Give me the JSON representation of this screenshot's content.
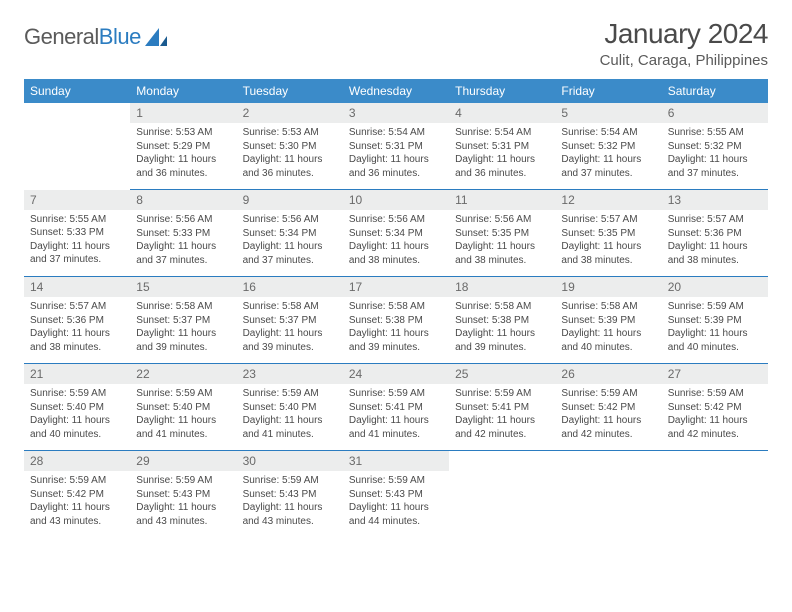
{
  "logo": {
    "text1": "General",
    "text2": "Blue"
  },
  "title": "January 2024",
  "location": "Culit, Caraga, Philippines",
  "colors": {
    "header_bg": "#3b8bc9",
    "header_border": "#2b7cc0",
    "daynum_bg": "#eceded",
    "text": "#4a4a4a"
  },
  "weekdays": [
    "Sunday",
    "Monday",
    "Tuesday",
    "Wednesday",
    "Thursday",
    "Friday",
    "Saturday"
  ],
  "weeks": [
    [
      null,
      {
        "n": "1",
        "sr": "Sunrise: 5:53 AM",
        "ss": "Sunset: 5:29 PM",
        "dl": "Daylight: 11 hours and 36 minutes."
      },
      {
        "n": "2",
        "sr": "Sunrise: 5:53 AM",
        "ss": "Sunset: 5:30 PM",
        "dl": "Daylight: 11 hours and 36 minutes."
      },
      {
        "n": "3",
        "sr": "Sunrise: 5:54 AM",
        "ss": "Sunset: 5:31 PM",
        "dl": "Daylight: 11 hours and 36 minutes."
      },
      {
        "n": "4",
        "sr": "Sunrise: 5:54 AM",
        "ss": "Sunset: 5:31 PM",
        "dl": "Daylight: 11 hours and 36 minutes."
      },
      {
        "n": "5",
        "sr": "Sunrise: 5:54 AM",
        "ss": "Sunset: 5:32 PM",
        "dl": "Daylight: 11 hours and 37 minutes."
      },
      {
        "n": "6",
        "sr": "Sunrise: 5:55 AM",
        "ss": "Sunset: 5:32 PM",
        "dl": "Daylight: 11 hours and 37 minutes."
      }
    ],
    [
      {
        "n": "7",
        "sr": "Sunrise: 5:55 AM",
        "ss": "Sunset: 5:33 PM",
        "dl": "Daylight: 11 hours and 37 minutes."
      },
      {
        "n": "8",
        "sr": "Sunrise: 5:56 AM",
        "ss": "Sunset: 5:33 PM",
        "dl": "Daylight: 11 hours and 37 minutes."
      },
      {
        "n": "9",
        "sr": "Sunrise: 5:56 AM",
        "ss": "Sunset: 5:34 PM",
        "dl": "Daylight: 11 hours and 37 minutes."
      },
      {
        "n": "10",
        "sr": "Sunrise: 5:56 AM",
        "ss": "Sunset: 5:34 PM",
        "dl": "Daylight: 11 hours and 38 minutes."
      },
      {
        "n": "11",
        "sr": "Sunrise: 5:56 AM",
        "ss": "Sunset: 5:35 PM",
        "dl": "Daylight: 11 hours and 38 minutes."
      },
      {
        "n": "12",
        "sr": "Sunrise: 5:57 AM",
        "ss": "Sunset: 5:35 PM",
        "dl": "Daylight: 11 hours and 38 minutes."
      },
      {
        "n": "13",
        "sr": "Sunrise: 5:57 AM",
        "ss": "Sunset: 5:36 PM",
        "dl": "Daylight: 11 hours and 38 minutes."
      }
    ],
    [
      {
        "n": "14",
        "sr": "Sunrise: 5:57 AM",
        "ss": "Sunset: 5:36 PM",
        "dl": "Daylight: 11 hours and 38 minutes."
      },
      {
        "n": "15",
        "sr": "Sunrise: 5:58 AM",
        "ss": "Sunset: 5:37 PM",
        "dl": "Daylight: 11 hours and 39 minutes."
      },
      {
        "n": "16",
        "sr": "Sunrise: 5:58 AM",
        "ss": "Sunset: 5:37 PM",
        "dl": "Daylight: 11 hours and 39 minutes."
      },
      {
        "n": "17",
        "sr": "Sunrise: 5:58 AM",
        "ss": "Sunset: 5:38 PM",
        "dl": "Daylight: 11 hours and 39 minutes."
      },
      {
        "n": "18",
        "sr": "Sunrise: 5:58 AM",
        "ss": "Sunset: 5:38 PM",
        "dl": "Daylight: 11 hours and 39 minutes."
      },
      {
        "n": "19",
        "sr": "Sunrise: 5:58 AM",
        "ss": "Sunset: 5:39 PM",
        "dl": "Daylight: 11 hours and 40 minutes."
      },
      {
        "n": "20",
        "sr": "Sunrise: 5:59 AM",
        "ss": "Sunset: 5:39 PM",
        "dl": "Daylight: 11 hours and 40 minutes."
      }
    ],
    [
      {
        "n": "21",
        "sr": "Sunrise: 5:59 AM",
        "ss": "Sunset: 5:40 PM",
        "dl": "Daylight: 11 hours and 40 minutes."
      },
      {
        "n": "22",
        "sr": "Sunrise: 5:59 AM",
        "ss": "Sunset: 5:40 PM",
        "dl": "Daylight: 11 hours and 41 minutes."
      },
      {
        "n": "23",
        "sr": "Sunrise: 5:59 AM",
        "ss": "Sunset: 5:40 PM",
        "dl": "Daylight: 11 hours and 41 minutes."
      },
      {
        "n": "24",
        "sr": "Sunrise: 5:59 AM",
        "ss": "Sunset: 5:41 PM",
        "dl": "Daylight: 11 hours and 41 minutes."
      },
      {
        "n": "25",
        "sr": "Sunrise: 5:59 AM",
        "ss": "Sunset: 5:41 PM",
        "dl": "Daylight: 11 hours and 42 minutes."
      },
      {
        "n": "26",
        "sr": "Sunrise: 5:59 AM",
        "ss": "Sunset: 5:42 PM",
        "dl": "Daylight: 11 hours and 42 minutes."
      },
      {
        "n": "27",
        "sr": "Sunrise: 5:59 AM",
        "ss": "Sunset: 5:42 PM",
        "dl": "Daylight: 11 hours and 42 minutes."
      }
    ],
    [
      {
        "n": "28",
        "sr": "Sunrise: 5:59 AM",
        "ss": "Sunset: 5:42 PM",
        "dl": "Daylight: 11 hours and 43 minutes."
      },
      {
        "n": "29",
        "sr": "Sunrise: 5:59 AM",
        "ss": "Sunset: 5:43 PM",
        "dl": "Daylight: 11 hours and 43 minutes."
      },
      {
        "n": "30",
        "sr": "Sunrise: 5:59 AM",
        "ss": "Sunset: 5:43 PM",
        "dl": "Daylight: 11 hours and 43 minutes."
      },
      {
        "n": "31",
        "sr": "Sunrise: 5:59 AM",
        "ss": "Sunset: 5:43 PM",
        "dl": "Daylight: 11 hours and 44 minutes."
      },
      null,
      null,
      null
    ]
  ]
}
